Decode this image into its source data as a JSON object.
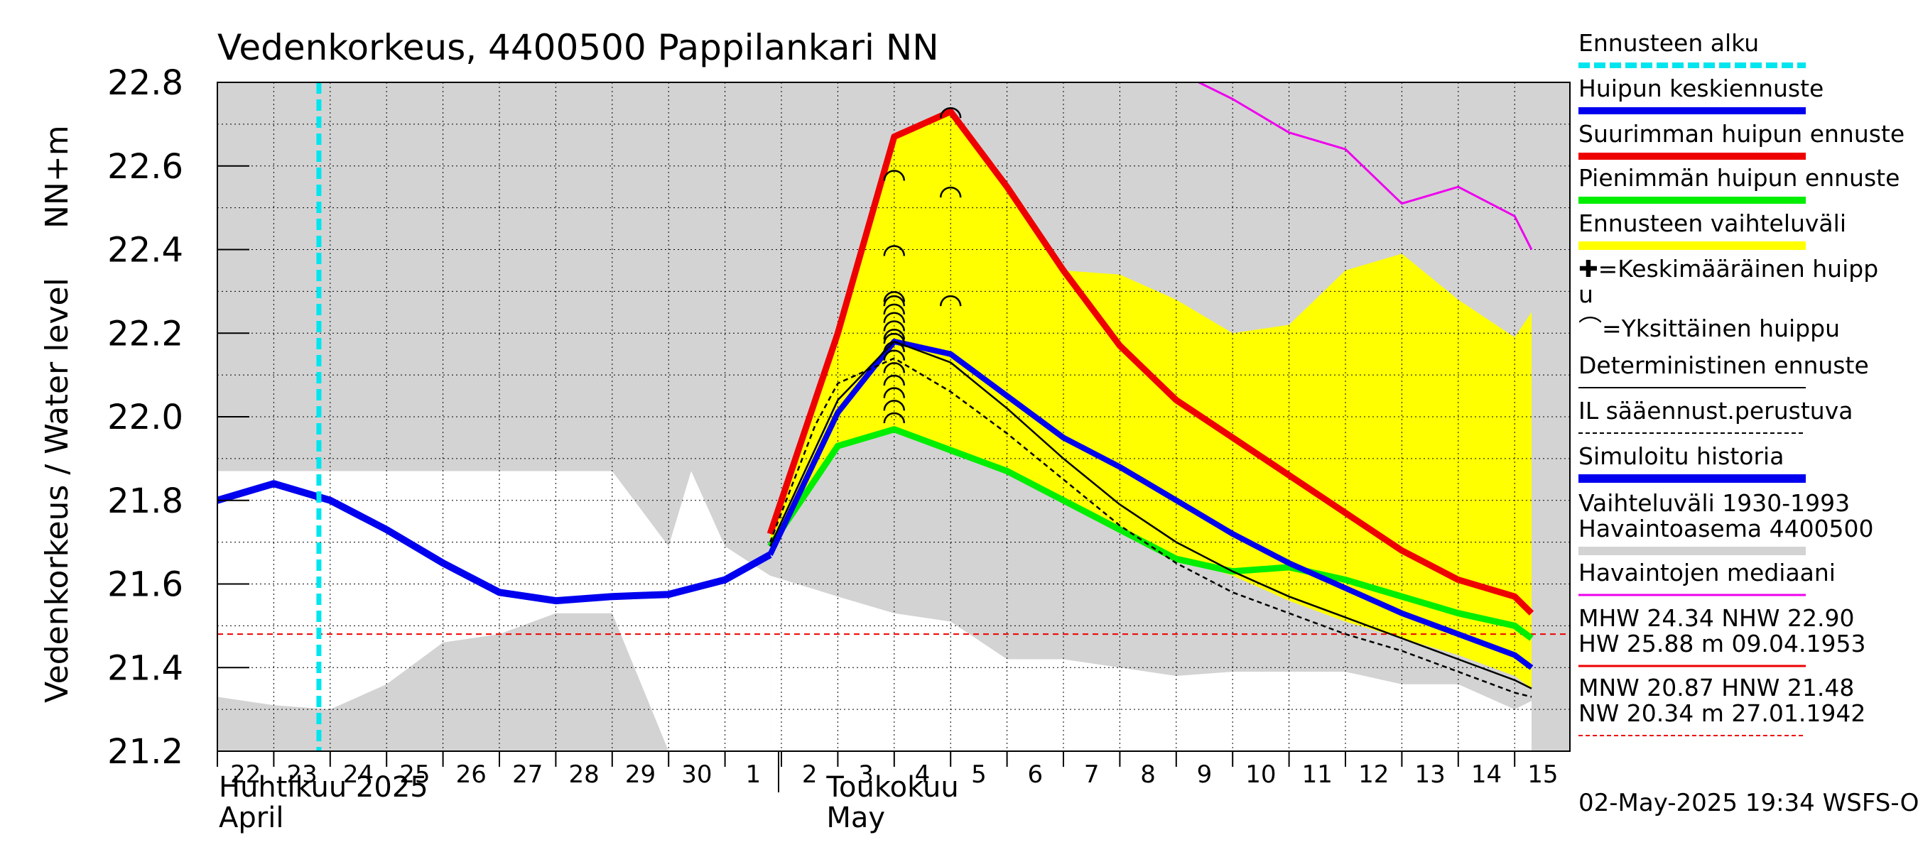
{
  "chart_data": {
    "type": "line",
    "title": "Vedenkorkeus, 4400500 Pappilankari NN",
    "ylabel_left": "Vedenkorkeus / Water level",
    "ylabel_unit": "NN+m",
    "ylim": [
      21.2,
      22.8
    ],
    "y_ticks": [
      "21.2",
      "21.4",
      "21.6",
      "21.8",
      "22.0",
      "22.2",
      "22.4",
      "22.6",
      "22.8"
    ],
    "x_days": [
      "22",
      "23",
      "24",
      "25",
      "26",
      "27",
      "28",
      "29",
      "30",
      "1",
      "2",
      "3",
      "4",
      "5",
      "6",
      "7",
      "8",
      "9",
      "10",
      "11",
      "12",
      "13",
      "14",
      "15"
    ],
    "month_labels": [
      {
        "line1": "Huhtikuu  2025",
        "line2": "April"
      },
      {
        "line1": "Toukokuu",
        "line2": "May"
      }
    ],
    "forecast_start_day": 1.8,
    "colors": {
      "plot_bg": "#d3d3d3",
      "range_fill": "#ffffff",
      "forecast_fill": "#ffff00",
      "forecast_start": "#00e5ee",
      "mean_peak": "#0000ee",
      "max_peak": "#ee0000",
      "min_peak": "#00ee00",
      "median": "#ee00ee",
      "ref_line": "#ee0000"
    },
    "observed_range": {
      "x": [
        -0.3,
        0,
        1,
        2,
        3,
        4,
        5,
        6,
        7,
        8,
        8.4,
        9,
        9.8
      ],
      "upper": [
        21.87,
        21.87,
        21.87,
        21.87,
        21.87,
        21.87,
        21.87,
        21.87,
        21.87,
        21.69,
        21.87,
        21.69,
        21.62
      ],
      "lower": [
        21.31,
        21.33,
        21.31,
        21.3,
        21.36,
        21.46,
        21.48,
        21.53,
        21.53,
        21.2,
        21.2,
        21.2,
        21.2
      ]
    },
    "gray_lower_forecast": {
      "x": [
        9.8,
        11,
        12,
        13,
        14,
        15,
        16,
        17,
        18,
        19,
        20,
        21,
        22,
        23,
        23.3
      ],
      "y": [
        21.62,
        21.57,
        21.53,
        21.51,
        21.42,
        21.42,
        21.4,
        21.38,
        21.39,
        21.39,
        21.39,
        21.36,
        21.36,
        21.3,
        21.32
      ]
    },
    "forecast_range": {
      "x": [
        9.8,
        11,
        12,
        13,
        14,
        15,
        16,
        17,
        18,
        19,
        20,
        21,
        22,
        23,
        23.3
      ],
      "upper": [
        21.72,
        22.2,
        22.67,
        22.73,
        22.55,
        22.35,
        22.34,
        22.28,
        22.2,
        22.22,
        22.35,
        22.39,
        22.28,
        22.19,
        22.25
      ],
      "lower": [
        21.69,
        21.93,
        21.97,
        21.92,
        21.87,
        21.8,
        21.73,
        21.66,
        21.62,
        21.56,
        21.51,
        21.47,
        21.43,
        21.38,
        21.35
      ]
    },
    "series": [
      {
        "name": "Simuloitu historia",
        "x": [
          -0.3,
          0,
          1,
          2,
          3,
          4,
          5,
          6,
          7,
          8,
          9,
          9.8
        ],
        "y": [
          21.78,
          21.8,
          21.84,
          21.8,
          21.73,
          21.65,
          21.58,
          21.56,
          21.57,
          21.575,
          21.61,
          21.67
        ]
      },
      {
        "name": "Huipun keskiennuste",
        "x": [
          9.8,
          11,
          12,
          13,
          14,
          15,
          16,
          17,
          18,
          19,
          20,
          21,
          22,
          23,
          23.3
        ],
        "y": [
          21.67,
          22.01,
          22.18,
          22.15,
          22.05,
          21.95,
          21.88,
          21.8,
          21.72,
          21.65,
          21.59,
          21.53,
          21.48,
          21.43,
          21.4
        ]
      },
      {
        "name": "Suurimman huipun ennuste",
        "x": [
          9.8,
          11,
          12,
          13,
          14,
          15,
          16,
          17,
          18,
          19,
          20,
          21,
          22,
          23,
          23.3
        ],
        "y": [
          21.72,
          22.2,
          22.67,
          22.73,
          22.55,
          22.35,
          22.17,
          22.04,
          21.95,
          21.86,
          21.77,
          21.68,
          21.61,
          21.57,
          21.53
        ]
      },
      {
        "name": "Pienimmän huipun ennuste",
        "x": [
          9.8,
          11,
          12,
          13,
          14,
          15,
          16,
          17,
          18,
          19,
          20,
          21,
          22,
          23,
          23.3
        ],
        "y": [
          21.69,
          21.93,
          21.97,
          21.92,
          21.87,
          21.8,
          21.73,
          21.66,
          21.63,
          21.64,
          21.61,
          21.57,
          21.53,
          21.5,
          21.47
        ]
      },
      {
        "name": "Deterministinen ennuste",
        "x": [
          9.8,
          11,
          12,
          13,
          14,
          15,
          16,
          17,
          18,
          19,
          20,
          21,
          22,
          23,
          23.3
        ],
        "y": [
          21.69,
          22.04,
          22.18,
          22.13,
          22.02,
          21.9,
          21.79,
          21.7,
          21.63,
          21.57,
          21.52,
          21.47,
          21.42,
          21.37,
          21.35
        ]
      },
      {
        "name": "IL sääennust.perustuva",
        "x": [
          9.8,
          10.6,
          11,
          12,
          13,
          14,
          15,
          16,
          17,
          18,
          19,
          20,
          21,
          22,
          23,
          23.3
        ],
        "y": [
          21.7,
          21.98,
          22.08,
          22.14,
          22.06,
          21.96,
          21.85,
          21.74,
          21.65,
          21.58,
          21.53,
          21.48,
          21.44,
          21.39,
          21.34,
          21.33
        ]
      },
      {
        "name": "Havaintojen mediaani",
        "x": [
          17.4,
          18,
          19,
          20,
          21,
          22,
          23,
          23.3
        ],
        "y": [
          22.8,
          22.76,
          22.68,
          22.64,
          22.51,
          22.55,
          22.48,
          22.4
        ]
      }
    ],
    "peaks": [
      {
        "x": 12,
        "y": 22.58
      },
      {
        "x": 12,
        "y": 22.4
      },
      {
        "x": 12,
        "y": 22.29
      },
      {
        "x": 12,
        "y": 22.28
      },
      {
        "x": 12,
        "y": 22.26
      },
      {
        "x": 12,
        "y": 22.24
      },
      {
        "x": 12,
        "y": 22.22
      },
      {
        "x": 12,
        "y": 22.2
      },
      {
        "x": 12,
        "y": 22.19
      },
      {
        "x": 12,
        "y": 22.17
      },
      {
        "x": 12,
        "y": 22.15
      },
      {
        "x": 12,
        "y": 22.12
      },
      {
        "x": 12,
        "y": 22.09
      },
      {
        "x": 12,
        "y": 22.06
      },
      {
        "x": 12,
        "y": 22.03
      },
      {
        "x": 12,
        "y": 22.0
      },
      {
        "x": 13,
        "y": 22.73
      },
      {
        "x": 13,
        "y": 22.54
      },
      {
        "x": 13,
        "y": 22.28
      }
    ],
    "reference_line_y": 21.48,
    "legend": [
      {
        "label": "Ennusteen alku",
        "style": "forecast-start"
      },
      {
        "label": "Huipun keskiennuste",
        "style": "mean"
      },
      {
        "label": "Suurimman huipun ennuste",
        "style": "max"
      },
      {
        "label": "Pienimmän huipun ennuste",
        "style": "min"
      },
      {
        "label": "Ennusteen vaihteluväli",
        "style": "range"
      },
      {
        "label": "✚=Keskimääräinen huipp",
        "label2": "u",
        "style": "none"
      },
      {
        "label": "⌒=Yksittäinen huippu",
        "style": "none"
      },
      {
        "label": "Deterministinen ennuste",
        "style": "det"
      },
      {
        "label": "IL sääennust.perustuva",
        "style": "il"
      },
      {
        "label": "Simuloitu historia",
        "style": "sim"
      },
      {
        "label": "Vaihteluväli 1930-1993",
        "label2": " Havaintoasema 4400500",
        "style": "gray"
      },
      {
        "label": "Havaintojen mediaani",
        "style": "median"
      },
      {
        "label": "MHW  24.34 NHW  22.90",
        "label2": "HW  25.88 m 09.04.1953",
        "style": "hw"
      },
      {
        "label": "MNW  20.87 HNW  21.48",
        "label2": "NW  20.34 m 27.01.1942",
        "style": "nw"
      }
    ],
    "timestamp": "02-May-2025 19:34 WSFS-O"
  }
}
